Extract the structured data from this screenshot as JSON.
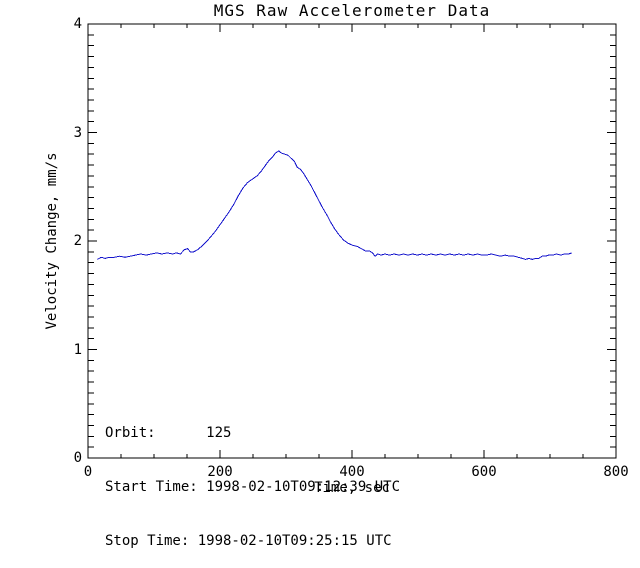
{
  "chart_data": {
    "type": "line",
    "title": "MGS Raw Accelerometer Data",
    "xlabel": "Time, sec",
    "ylabel": "Velocity Change, mm/s",
    "xlim": [
      0,
      800
    ],
    "ylim": [
      0,
      4
    ],
    "x_major_ticks": [
      0,
      200,
      400,
      600,
      800
    ],
    "x_tick_labels": [
      "0",
      "200",
      "400",
      "600",
      "800"
    ],
    "x_minor_interval": 50,
    "y_major_ticks": [
      0,
      1,
      2,
      3,
      4
    ],
    "y_tick_labels": [
      "0",
      "1",
      "2",
      "3",
      "4"
    ],
    "y_minor_interval": 0.1,
    "grid": false,
    "line_color": "#1414cc",
    "axis_color": "#000000",
    "background_color": "#ffffff",
    "annotations": [
      "Orbit:      125",
      "Start Time: 1998-02-10T09:12:39 UTC",
      "Stop Time: 1998-02-10T09:25:15 UTC"
    ],
    "series": [
      {
        "name": "velocity_change_mm_s",
        "points": [
          [
            14,
            1.83
          ],
          [
            20,
            1.85
          ],
          [
            26,
            1.84
          ],
          [
            32,
            1.85
          ],
          [
            40,
            1.85
          ],
          [
            48,
            1.86
          ],
          [
            56,
            1.85
          ],
          [
            64,
            1.86
          ],
          [
            72,
            1.87
          ],
          [
            80,
            1.88
          ],
          [
            88,
            1.87
          ],
          [
            96,
            1.88
          ],
          [
            104,
            1.89
          ],
          [
            112,
            1.88
          ],
          [
            120,
            1.89
          ],
          [
            128,
            1.88
          ],
          [
            134,
            1.89
          ],
          [
            140,
            1.88
          ],
          [
            146,
            1.92
          ],
          [
            151,
            1.93
          ],
          [
            155,
            1.9
          ],
          [
            160,
            1.9
          ],
          [
            166,
            1.92
          ],
          [
            172,
            1.95
          ],
          [
            179,
            1.99
          ],
          [
            186,
            2.04
          ],
          [
            193,
            2.09
          ],
          [
            200,
            2.15
          ],
          [
            207,
            2.21
          ],
          [
            214,
            2.27
          ],
          [
            221,
            2.34
          ],
          [
            228,
            2.42
          ],
          [
            235,
            2.49
          ],
          [
            242,
            2.54
          ],
          [
            249,
            2.57
          ],
          [
            256,
            2.6
          ],
          [
            262,
            2.64
          ],
          [
            268,
            2.69
          ],
          [
            274,
            2.74
          ],
          [
            279,
            2.77
          ],
          [
            284,
            2.81
          ],
          [
            289,
            2.83
          ],
          [
            293,
            2.81
          ],
          [
            298,
            2.8
          ],
          [
            303,
            2.79
          ],
          [
            308,
            2.76
          ],
          [
            313,
            2.73
          ],
          [
            317,
            2.68
          ],
          [
            322,
            2.66
          ],
          [
            327,
            2.62
          ],
          [
            332,
            2.57
          ],
          [
            338,
            2.51
          ],
          [
            344,
            2.44
          ],
          [
            350,
            2.37
          ],
          [
            356,
            2.3
          ],
          [
            362,
            2.24
          ],
          [
            368,
            2.17
          ],
          [
            374,
            2.11
          ],
          [
            380,
            2.06
          ],
          [
            387,
            2.01
          ],
          [
            394,
            1.98
          ],
          [
            401,
            1.96
          ],
          [
            408,
            1.95
          ],
          [
            414,
            1.93
          ],
          [
            420,
            1.91
          ],
          [
            426,
            1.91
          ],
          [
            431,
            1.89
          ],
          [
            435,
            1.86
          ],
          [
            439,
            1.88
          ],
          [
            444,
            1.87
          ],
          [
            450,
            1.88
          ],
          [
            457,
            1.87
          ],
          [
            464,
            1.88
          ],
          [
            471,
            1.87
          ],
          [
            478,
            1.88
          ],
          [
            485,
            1.87
          ],
          [
            492,
            1.88
          ],
          [
            499,
            1.87
          ],
          [
            506,
            1.88
          ],
          [
            513,
            1.87
          ],
          [
            520,
            1.88
          ],
          [
            527,
            1.87
          ],
          [
            534,
            1.88
          ],
          [
            541,
            1.87
          ],
          [
            548,
            1.88
          ],
          [
            555,
            1.87
          ],
          [
            562,
            1.88
          ],
          [
            569,
            1.87
          ],
          [
            576,
            1.88
          ],
          [
            583,
            1.87
          ],
          [
            590,
            1.88
          ],
          [
            597,
            1.87
          ],
          [
            604,
            1.87
          ],
          [
            611,
            1.88
          ],
          [
            618,
            1.87
          ],
          [
            625,
            1.86
          ],
          [
            632,
            1.87
          ],
          [
            639,
            1.86
          ],
          [
            646,
            1.86
          ],
          [
            652,
            1.85
          ],
          [
            658,
            1.84
          ],
          [
            663,
            1.83
          ],
          [
            668,
            1.84
          ],
          [
            673,
            1.83
          ],
          [
            678,
            1.84
          ],
          [
            683,
            1.84
          ],
          [
            688,
            1.86
          ],
          [
            693,
            1.86
          ],
          [
            698,
            1.87
          ],
          [
            704,
            1.87
          ],
          [
            710,
            1.88
          ],
          [
            716,
            1.87
          ],
          [
            722,
            1.88
          ],
          [
            728,
            1.88
          ],
          [
            733,
            1.89
          ]
        ]
      }
    ]
  }
}
